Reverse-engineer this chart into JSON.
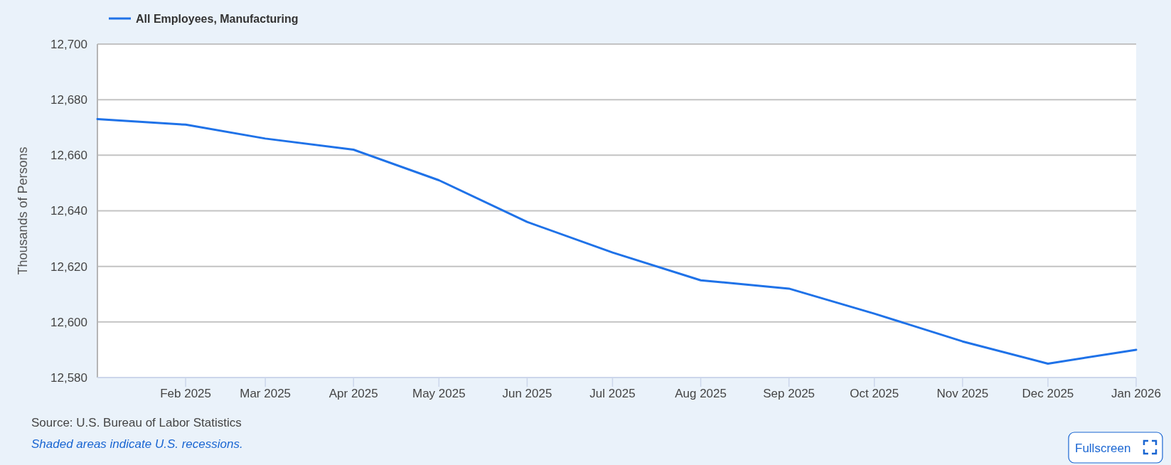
{
  "chart_data": {
    "type": "line",
    "ylabel": "Thousands of Persons",
    "x": [
      "2025-01",
      "2025-02",
      "2025-03",
      "2025-04",
      "2025-05",
      "2025-06",
      "2025-07",
      "2025-08",
      "2025-09",
      "2025-10",
      "2025-11",
      "2025-12",
      "2026-01"
    ],
    "series": [
      {
        "name": "All Employees, Manufacturing",
        "color": "#1f72e8",
        "values": [
          12673,
          12671,
          12666,
          12662,
          12651,
          12636,
          12625,
          12615,
          12612,
          12603,
          12593,
          12585,
          12590
        ]
      }
    ],
    "xlim": [
      "2025-01",
      "2026-01"
    ],
    "xticks": [
      {
        "value": "2025-02",
        "label": "Feb 2025"
      },
      {
        "value": "2025-03",
        "label": "Mar 2025"
      },
      {
        "value": "2025-04",
        "label": "Apr 2025"
      },
      {
        "value": "2025-05",
        "label": "May 2025"
      },
      {
        "value": "2025-06",
        "label": "Jun 2025"
      },
      {
        "value": "2025-07",
        "label": "Jul 2025"
      },
      {
        "value": "2025-08",
        "label": "Aug 2025"
      },
      {
        "value": "2025-09",
        "label": "Sep 2025"
      },
      {
        "value": "2025-10",
        "label": "Oct 2025"
      },
      {
        "value": "2025-11",
        "label": "Nov 2025"
      },
      {
        "value": "2025-12",
        "label": "Dec 2025"
      },
      {
        "value": "2026-01",
        "label": "Jan 2026"
      }
    ],
    "ylim": [
      12580,
      12700
    ],
    "yticks": [
      {
        "value": 12580,
        "label": "12,580"
      },
      {
        "value": 12600,
        "label": "12,600"
      },
      {
        "value": 12620,
        "label": "12,620"
      },
      {
        "value": 12640,
        "label": "12,640"
      },
      {
        "value": 12660,
        "label": "12,660"
      },
      {
        "value": 12680,
        "label": "12,680"
      },
      {
        "value": 12700,
        "label": "12,700"
      }
    ],
    "grid": "y",
    "legend": "top left",
    "annotations": [
      "Source: U.S. Bureau of Labor Statistics",
      "Shaded areas indicate U.S. recessions.",
      "Fullscreen"
    ]
  }
}
